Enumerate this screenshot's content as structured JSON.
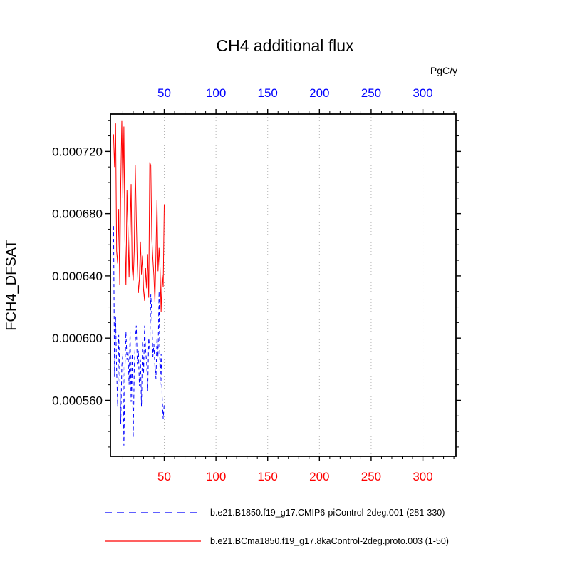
{
  "chart_data": {
    "type": "line",
    "title": "CH4 additional flux",
    "top_axis_unit": "PgC/y",
    "ylabel": "FCH4_DFSAT",
    "xlim": [
      -2,
      332
    ],
    "ylim": [
      0.000524,
      0.000744
    ],
    "x_ticks": [
      50,
      100,
      150,
      200,
      250,
      300
    ],
    "x_minor_step": 10,
    "y_ticks": [
      0.00056,
      0.0006,
      0.00064,
      0.00068,
      0.00072
    ],
    "y_minor_step": 1e-05,
    "grid": "vertical-dotted",
    "legend_position": "bottom",
    "colors": {
      "top_axis": "#0000ff",
      "bottom_axis": "#ff0000",
      "grid": "#b3b3b3",
      "frame": "#000000",
      "text": "#000000"
    },
    "x": {
      "start": 1,
      "step": 1
    },
    "series": [
      {
        "name": "b.e21.B1850.f19_g17.CMIP6-piControl-2deg.001 (281-330)",
        "color": "#0000ff",
        "style": "dashed",
        "values": [
          0.000672,
          0.000575,
          0.000614,
          0.000579,
          0.000556,
          0.000602,
          0.000579,
          0.000545,
          0.000582,
          0.00059,
          0.000531,
          0.00058,
          0.000604,
          0.000586,
          0.000592,
          0.00057,
          0.000604,
          0.000559,
          0.00059,
          0.000536,
          0.00058,
          0.000598,
          0.000608,
          0.000583,
          0.000592,
          0.000569,
          0.000586,
          0.000556,
          0.000598,
          0.000577,
          0.000608,
          0.000592,
          0.000584,
          0.000566,
          0.0006,
          0.000592,
          0.000628,
          0.000616,
          0.000588,
          0.000596,
          0.000582,
          0.000574,
          0.0006,
          0.000588,
          0.00063,
          0.00057,
          0.00059,
          0.000562,
          0.000548,
          0.000558
        ]
      },
      {
        "name": "b.e21.BCma1850.f19_g17.8kaControl-2deg.proto.003 (1-50)",
        "color": "#ff0000",
        "style": "solid",
        "values": [
          0.000731,
          0.00071,
          0.000738,
          0.000656,
          0.000648,
          0.000683,
          0.000634,
          0.0007,
          0.00074,
          0.00069,
          0.000736,
          0.000664,
          0.000634,
          0.000695,
          0.00067,
          0.000639,
          0.000667,
          0.000699,
          0.000645,
          0.000637,
          0.000656,
          0.000711,
          0.000677,
          0.000647,
          0.000629,
          0.000638,
          0.000662,
          0.000641,
          0.000653,
          0.000631,
          0.000624,
          0.000645,
          0.000632,
          0.000654,
          0.000626,
          0.000713,
          0.000711,
          0.000664,
          0.000651,
          0.00064,
          0.000623,
          0.000655,
          0.000689,
          0.000643,
          0.000658,
          0.000644,
          0.000617,
          0.000641,
          0.000633,
          0.000686
        ]
      }
    ]
  }
}
